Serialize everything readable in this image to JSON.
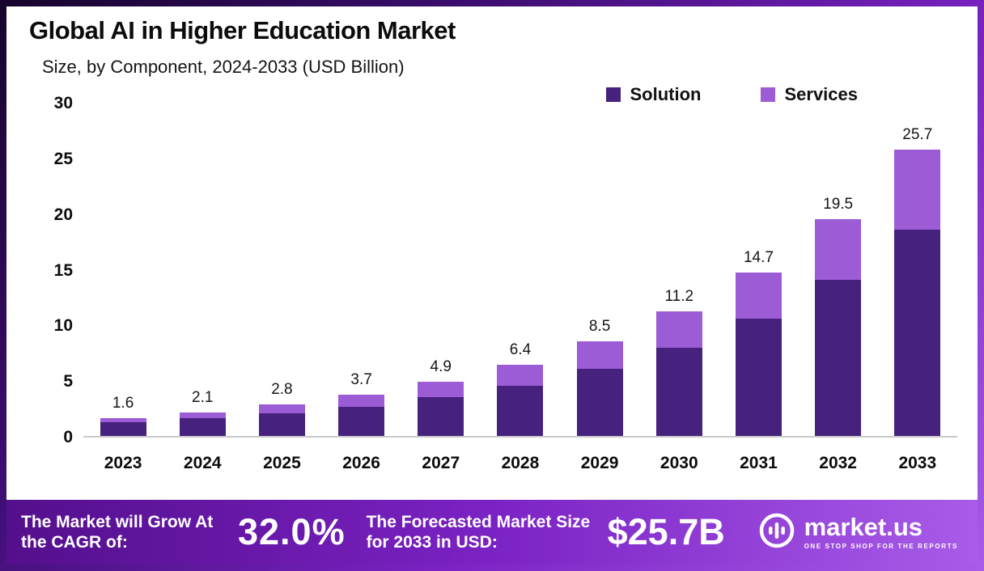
{
  "header": {
    "title": "Global AI in Higher Education Market",
    "subtitle": "Size, by Component, 2024-2033 (USD Billion)"
  },
  "legend": [
    {
      "label": "Solution",
      "color": "#47217e"
    },
    {
      "label": "Services",
      "color": "#9c5cd6"
    }
  ],
  "chart_data": {
    "type": "bar",
    "stacked": true,
    "title": "Global AI in Higher Education Market Size, by Component, 2024-2033 (USD Billion)",
    "categories": [
      "2023",
      "2024",
      "2025",
      "2026",
      "2027",
      "2028",
      "2029",
      "2030",
      "2031",
      "2032",
      "2033"
    ],
    "series": [
      {
        "name": "Solution",
        "color": "#47217e",
        "values": [
          1.2,
          1.6,
          2.0,
          2.6,
          3.5,
          4.5,
          6.0,
          7.9,
          10.5,
          14.0,
          18.5
        ]
      },
      {
        "name": "Services",
        "color": "#9c5cd6",
        "values": [
          0.4,
          0.5,
          0.8,
          1.1,
          1.4,
          1.9,
          2.5,
          3.3,
          4.2,
          5.5,
          7.2
        ]
      }
    ],
    "totals": [
      1.6,
      2.1,
      2.8,
      3.7,
      4.9,
      6.4,
      8.5,
      11.2,
      14.7,
      19.5,
      25.7
    ],
    "xlabel": "",
    "ylabel": "",
    "ylim": [
      0,
      30
    ],
    "yticks": [
      0,
      5,
      10,
      15,
      20,
      25,
      30
    ],
    "grid": false,
    "legend_position": "top-right"
  },
  "banner": {
    "cagr_label": "The Market will Grow At the CAGR of:",
    "cagr_value": "32.0%",
    "forecast_label": "The Forecasted Market Size for 2033 in USD:",
    "forecast_value": "$25.7B",
    "brand": "market.us",
    "brand_tagline": "ONE STOP SHOP FOR THE REPORTS"
  }
}
